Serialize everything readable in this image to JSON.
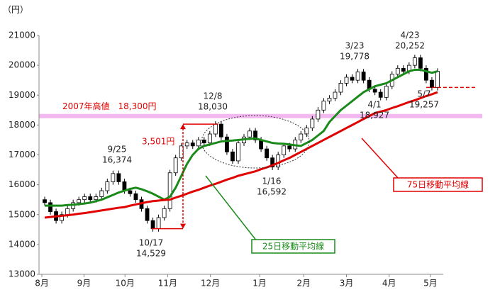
{
  "chart_data": {
    "type": "candlestick",
    "y_unit_label": "（円）",
    "ylim": [
      13000,
      21000
    ],
    "yticks": [
      13000,
      14000,
      15000,
      16000,
      17000,
      18000,
      19000,
      20000,
      21000
    ],
    "xlim": [
      -1,
      70
    ],
    "xticks": [
      {
        "value": -0.5,
        "label": "8月"
      },
      {
        "value": 6.9,
        "label": "9月"
      },
      {
        "value": 14.1,
        "label": "10月"
      },
      {
        "value": 21.6,
        "label": "11月"
      },
      {
        "value": 29.1,
        "label": "12月"
      },
      {
        "value": 37.75,
        "label": "1月"
      },
      {
        "value": 45.5,
        "label": "2月"
      },
      {
        "value": 53,
        "label": "3月"
      },
      {
        "value": 60.5,
        "label": "4月"
      },
      {
        "value": 67.75,
        "label": "5月"
      }
    ],
    "up_color": "#ffffff",
    "down_color": "#000000",
    "candles": [
      [
        15500,
        15600,
        15300,
        15400
      ],
      [
        15400,
        15500,
        15000,
        15100
      ],
      [
        15100,
        15200,
        14700,
        14800
      ],
      [
        14800,
        15100,
        14700,
        15000
      ],
      [
        15000,
        15300,
        14900,
        15200
      ],
      [
        15200,
        15500,
        15100,
        15400
      ],
      [
        15400,
        15600,
        15300,
        15500
      ],
      [
        15500,
        15700,
        15400,
        15600
      ],
      [
        15600,
        15700,
        15400,
        15500
      ],
      [
        15500,
        15700,
        15400,
        15600
      ],
      [
        15600,
        15900,
        15500,
        15800
      ],
      [
        15800,
        16200,
        15700,
        16100
      ],
      [
        16100,
        16474,
        16000,
        16374
      ],
      [
        16374,
        16474,
        16000,
        16100
      ],
      [
        16100,
        16200,
        15700,
        15800
      ],
      [
        15800,
        15900,
        15600,
        15700
      ],
      [
        15700,
        15800,
        15400,
        15500
      ],
      [
        15500,
        15600,
        15100,
        15200
      ],
      [
        15200,
        15300,
        14700,
        14800
      ],
      [
        14800,
        14900,
        14429,
        14529
      ],
      [
        14529,
        15000,
        14429,
        14900
      ],
      [
        14900,
        15300,
        14800,
        15200
      ],
      [
        15200,
        16500,
        15100,
        16400
      ],
      [
        16400,
        17000,
        16300,
        16900
      ],
      [
        16900,
        17400,
        16800,
        17300
      ],
      [
        17300,
        17500,
        17200,
        17400
      ],
      [
        17400,
        17500,
        17200,
        17300
      ],
      [
        17300,
        17600,
        17200,
        17500
      ],
      [
        17500,
        17600,
        17300,
        17400
      ],
      [
        17400,
        17800,
        17300,
        17700
      ],
      [
        17700,
        18130,
        17600,
        18030
      ],
      [
        18030,
        18130,
        17500,
        17600
      ],
      [
        17600,
        17700,
        17000,
        17100
      ],
      [
        17100,
        17200,
        16700,
        16800
      ],
      [
        16800,
        17500,
        16700,
        17400
      ],
      [
        17400,
        17700,
        17300,
        17600
      ],
      [
        17600,
        17900,
        17500,
        17800
      ],
      [
        17800,
        17900,
        17400,
        17500
      ],
      [
        17500,
        17600,
        17100,
        17200
      ],
      [
        17200,
        17300,
        16800,
        16900
      ],
      [
        16900,
        17000,
        16492,
        16592
      ],
      [
        16592,
        17100,
        16492,
        17000
      ],
      [
        17000,
        17400,
        16900,
        17300
      ],
      [
        17300,
        17400,
        17100,
        17200
      ],
      [
        17200,
        17600,
        17100,
        17500
      ],
      [
        17500,
        17800,
        17400,
        17700
      ],
      [
        17700,
        18000,
        17600,
        17900
      ],
      [
        17900,
        18300,
        17800,
        18200
      ],
      [
        18200,
        18600,
        18100,
        18500
      ],
      [
        18500,
        18900,
        18400,
        18800
      ],
      [
        18800,
        19000,
        18700,
        18900
      ],
      [
        18900,
        19200,
        18800,
        19100
      ],
      [
        19100,
        19500,
        19000,
        19400
      ],
      [
        19400,
        19700,
        19300,
        19600
      ],
      [
        19600,
        19700,
        19400,
        19500
      ],
      [
        19500,
        19878,
        19400,
        19778
      ],
      [
        19778,
        19878,
        19400,
        19500
      ],
      [
        19500,
        19600,
        19100,
        19200
      ],
      [
        19200,
        19300,
        19000,
        19100
      ],
      [
        19100,
        19200,
        18827,
        18927
      ],
      [
        18927,
        19400,
        18827,
        19300
      ],
      [
        19300,
        19800,
        19200,
        19700
      ],
      [
        19700,
        20000,
        19600,
        19900
      ],
      [
        19900,
        20000,
        19700,
        19800
      ],
      [
        19800,
        20100,
        19700,
        20000
      ],
      [
        20000,
        20352,
        19900,
        20252
      ],
      [
        20252,
        20352,
        19800,
        19900
      ],
      [
        19900,
        20000,
        19400,
        19500
      ],
      [
        19500,
        19600,
        19157,
        19257
      ],
      [
        19257,
        19900,
        19157,
        19800
      ]
    ],
    "series": [
      {
        "name": "25日移動平均線",
        "color": "#1a8a1a",
        "values": [
          15300,
          15300,
          15300,
          15300,
          15320,
          15330,
          15350,
          15370,
          15400,
          15450,
          15500,
          15580,
          15660,
          15740,
          15800,
          15860,
          15900,
          15850,
          15780,
          15700,
          15600,
          15500,
          15600,
          15900,
          16300,
          16700,
          17000,
          17200,
          17300,
          17350,
          17400,
          17450,
          17470,
          17480,
          17500,
          17520,
          17540,
          17550,
          17500,
          17450,
          17400,
          17380,
          17370,
          17350,
          17320,
          17300,
          17400,
          17500,
          17650,
          17800,
          18100,
          18300,
          18500,
          18650,
          18800,
          18950,
          19100,
          19200,
          19300,
          19350,
          19400,
          19500,
          19600,
          19700,
          19800,
          19850,
          19850,
          19800,
          19750,
          19800
        ]
      },
      {
        "name": "75日移動平均線",
        "color": "#e00000",
        "values": [
          14900,
          14920,
          14940,
          14960,
          14980,
          15000,
          15030,
          15050,
          15080,
          15110,
          15140,
          15170,
          15200,
          15230,
          15250,
          15300,
          15340,
          15380,
          15420,
          15450,
          15470,
          15490,
          15500,
          15570,
          15630,
          15700,
          15770,
          15830,
          15900,
          15970,
          16030,
          16100,
          16170,
          16230,
          16300,
          16350,
          16400,
          16450,
          16520,
          16580,
          16650,
          16730,
          16820,
          16900,
          17000,
          17100,
          17200,
          17300,
          17400,
          17500,
          17600,
          17700,
          17800,
          17900,
          18000,
          18100,
          18200,
          18300,
          18400,
          18450,
          18500,
          18570,
          18630,
          18700,
          18770,
          18830,
          18900,
          18970,
          19030,
          19100
        ]
      }
    ],
    "reference_line": {
      "text": "2007年高値　18,300円",
      "value": 18300,
      "color": "#f4b8f0"
    },
    "range_annotation": {
      "text": "3,501円",
      "color": "#e00000"
    },
    "annotations": [
      {
        "date": "9/25",
        "text": "16,374"
      },
      {
        "date": "10/17",
        "text": "14,529"
      },
      {
        "date": "12/8",
        "text": "18,030"
      },
      {
        "date": "1/16",
        "text": "16,592"
      },
      {
        "date": "3/23",
        "text": "19,778"
      },
      {
        "date": "4/1",
        "text": "18,927"
      },
      {
        "date": "4/23",
        "text": "20,252"
      },
      {
        "date": "5/7",
        "text": "19,257"
      }
    ]
  }
}
